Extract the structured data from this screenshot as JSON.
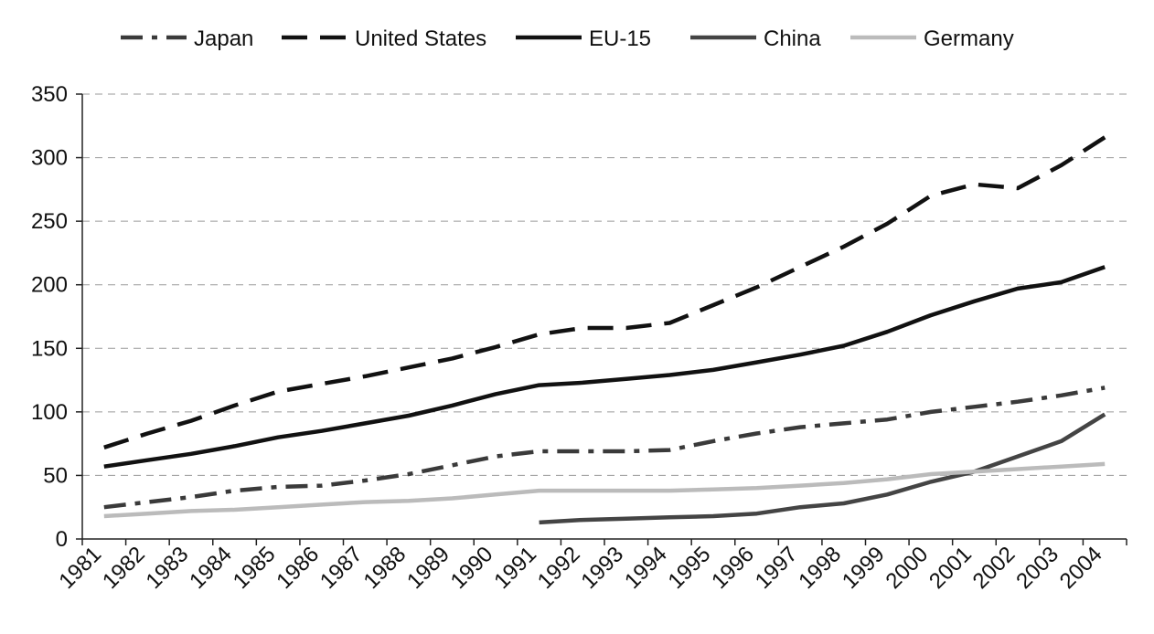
{
  "chart_data": {
    "type": "line",
    "title": "",
    "xlabel": "",
    "ylabel": "",
    "ylim": [
      0,
      350
    ],
    "yticks": [
      0,
      50,
      100,
      150,
      200,
      250,
      300,
      350
    ],
    "grid": "horizontal dashed",
    "legend_position": "top",
    "categories": [
      "1981",
      "1982",
      "1983",
      "1984",
      "1985",
      "1986",
      "1987",
      "1988",
      "1989",
      "1990",
      "1991",
      "1992",
      "1993",
      "1994",
      "1995",
      "1996",
      "1997",
      "1998",
      "1999",
      "2000",
      "2001",
      "2002",
      "2003",
      "2004"
    ],
    "series": [
      {
        "name": "Japan",
        "style": "dash-dot",
        "color": "#3a3a3a",
        "values": [
          25,
          29,
          33,
          38,
          41,
          42,
          46,
          51,
          58,
          65,
          69,
          69,
          69,
          70,
          77,
          83,
          88,
          91,
          94,
          100,
          104,
          108,
          113,
          119
        ]
      },
      {
        "name": "United States",
        "style": "dashed",
        "color": "#111111",
        "values": [
          72,
          83,
          93,
          105,
          116,
          122,
          128,
          135,
          142,
          151,
          161,
          166,
          166,
          170,
          184,
          198,
          214,
          230,
          248,
          270,
          279,
          276,
          294,
          316
        ]
      },
      {
        "name": "EU-15",
        "style": "solid",
        "color": "#111111",
        "values": [
          57,
          62,
          67,
          73,
          80,
          85,
          91,
          97,
          105,
          114,
          121,
          123,
          126,
          129,
          133,
          139,
          145,
          152,
          163,
          176,
          187,
          197,
          202,
          214
        ]
      },
      {
        "name": "China",
        "style": "solid",
        "color": "#444444",
        "values": [
          null,
          null,
          null,
          null,
          null,
          null,
          null,
          null,
          null,
          null,
          13,
          15,
          16,
          17,
          18,
          20,
          25,
          28,
          35,
          45,
          53,
          65,
          77,
          98
        ]
      },
      {
        "name": "Germany",
        "style": "solid",
        "color": "#bbbbbb",
        "values": [
          18,
          20,
          22,
          23,
          25,
          27,
          29,
          30,
          32,
          35,
          38,
          38,
          38,
          38,
          39,
          40,
          42,
          44,
          47,
          51,
          53,
          55,
          57,
          59
        ]
      }
    ]
  }
}
